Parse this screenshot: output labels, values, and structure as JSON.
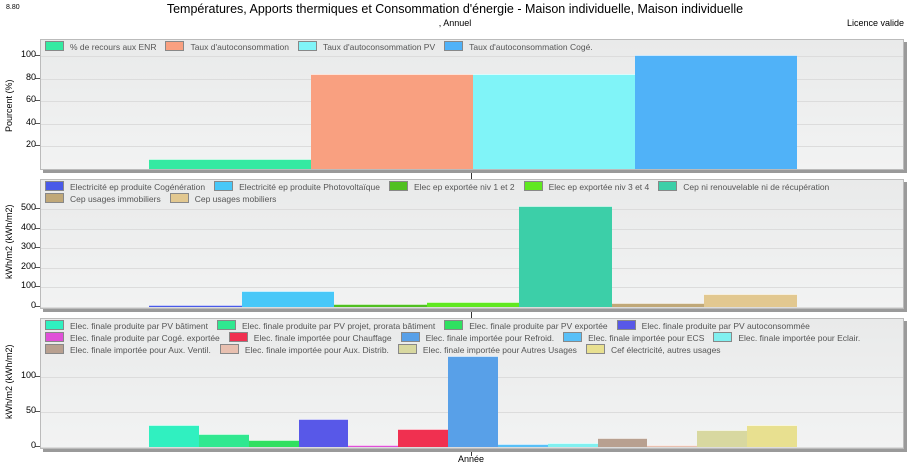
{
  "header": {
    "version": "8.80",
    "title": "Températures, Apports thermiques et Consommation d'énergie - Maison individuelle, Maison individuelle",
    "subtitle": ", Annuel",
    "license": "Licence valide"
  },
  "chart_data": [
    {
      "type": "bar",
      "ylabel": "Pourcent (%)",
      "xlabel": "Année",
      "categories": [
        "Année"
      ],
      "ylim": [
        0,
        110
      ],
      "yticks": [
        20,
        40,
        60,
        80,
        100
      ],
      "series": [
        {
          "name": "% de recours aux ENR",
          "values": [
            8
          ],
          "color": "#35eaa2"
        },
        {
          "name": "Taux d'autoconsommation",
          "values": [
            83
          ],
          "color": "#f9a080"
        },
        {
          "name": "Taux d'autoconsommation PV",
          "values": [
            83
          ],
          "color": "#80f4f8"
        },
        {
          "name": "Taux d'autoconsommation Cogé.",
          "values": [
            100
          ],
          "color": "#50b2f8"
        }
      ]
    },
    {
      "type": "bar",
      "ylabel": "kWh/m2 (kWh/m2)",
      "xlabel": "Année",
      "categories": [
        "Année"
      ],
      "ylim": [
        0,
        560
      ],
      "yticks": [
        0,
        100,
        200,
        300,
        400,
        500
      ],
      "series": [
        {
          "name": "Electricité ep produite Cogénération",
          "values": [
            5
          ],
          "color": "#4a5ae8"
        },
        {
          "name": "Electricité ep produite Photovoltaïque",
          "values": [
            78
          ],
          "color": "#48c8f8"
        },
        {
          "name": "Elec ep exportée niv 1 et 2",
          "values": [
            12
          ],
          "color": "#50c020"
        },
        {
          "name": "Elec ep exportée niv 3 et 4",
          "values": [
            20
          ],
          "color": "#60e820"
        },
        {
          "name": "Cep ni renouvelable ni de récupération",
          "values": [
            510
          ],
          "color": "#3ccfa8"
        },
        {
          "name": "Cep usages immobiliers",
          "values": [
            17
          ],
          "color": "#c0a878"
        },
        {
          "name": "Cep usages mobiliers",
          "values": [
            60
          ],
          "color": "#e2c890"
        }
      ]
    },
    {
      "type": "bar",
      "ylabel": "kWh/m2 (kWh/m2)",
      "xlabel": "Année",
      "categories": [
        "Année"
      ],
      "ylim": [
        0,
        135
      ],
      "yticks": [
        0,
        50,
        100
      ],
      "series": [
        {
          "name": "Elec. finale produite par PV bâtiment",
          "values": [
            30
          ],
          "color": "#30f0c0"
        },
        {
          "name": "Elec. finale produite par PV projet, prorata bâtiment",
          "values": [
            17
          ],
          "color": "#30e890"
        },
        {
          "name": "Elec. finale produite par PV exportée",
          "values": [
            8
          ],
          "color": "#30e060"
        },
        {
          "name": "Elec. finale produite par PV autoconsommée",
          "values": [
            38
          ],
          "color": "#5858e8"
        },
        {
          "name": "Elec. finale produite par Cogé. exportée",
          "values": [
            1
          ],
          "color": "#e050d8"
        },
        {
          "name": "Elec. finale importée pour Chauffage",
          "values": [
            25
          ],
          "color": "#f03050"
        },
        {
          "name": "Elec. finale importée pour Refroid.",
          "values": [
            128
          ],
          "color": "#58a0e8"
        },
        {
          "name": "Elec. finale importée pour ECS",
          "values": [
            3
          ],
          "color": "#58c0f8"
        },
        {
          "name": "Elec. finale importée pour Eclair.",
          "values": [
            4
          ],
          "color": "#80f0f0"
        },
        {
          "name": "Elec. finale importée pour Aux. Ventil.",
          "values": [
            11
          ],
          "color": "#b8a090"
        },
        {
          "name": "Elec. finale importée pour Aux. Distrib.",
          "values": [
            1
          ],
          "color": "#e8c0b0"
        },
        {
          "name": "Elec. finale importée pour Autres Usages",
          "values": [
            23
          ],
          "color": "#d8d8a0"
        },
        {
          "name": "Cef électricité, autres usages",
          "values": [
            30
          ],
          "color": "#e8e090"
        }
      ]
    }
  ]
}
